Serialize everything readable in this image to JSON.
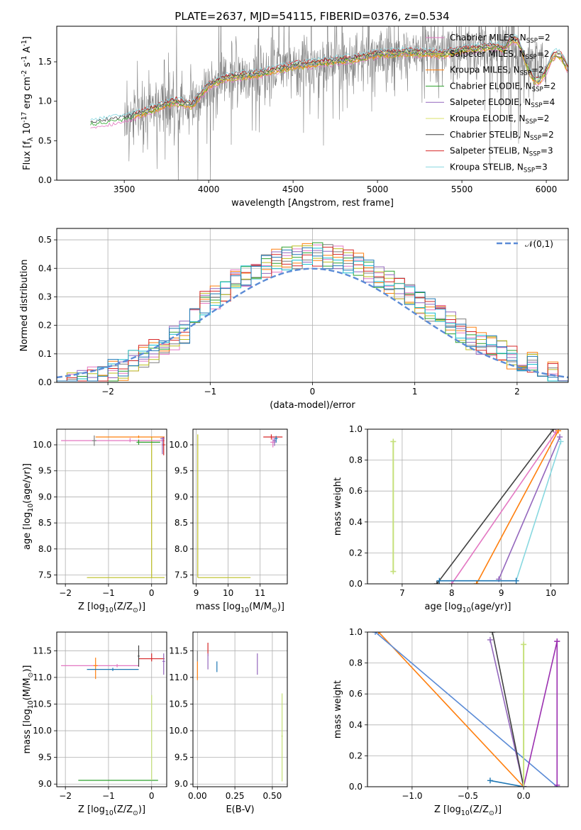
{
  "title": "PLATE=2637, MJD=54115, FIBERID=0376, z=0.534",
  "colors": [
    "#e377c2",
    "#7f7f7f",
    "#bcbd22",
    "#17becf",
    "#1f77b4",
    "#ff7f0e",
    "#2ca02c",
    "#d62728",
    "#9467bd"
  ],
  "model_names": [
    "Chabrier MILES",
    "Salpeter MILES",
    "Kroupa MILES",
    "Chabrier ELODIE",
    "Salpeter ELODIE",
    "Kroupa ELODIE",
    "Chabrier STELIB",
    "Salpeter STELIB",
    "Kroupa STELIB"
  ],
  "chart_data": [
    {
      "id": "spectrum",
      "type": "line",
      "xlabel": "wavelength [Angstrom, rest frame]",
      "ylabel": "Flux [f$_\\lambda 10^{-17}$ erg cm$^{-2}$ s$^{-1}$ A$^{-1}$]",
      "xlim": [
        3100,
        6130
      ],
      "ylim": [
        0,
        1.95
      ],
      "xticks": [
        3500,
        4000,
        4500,
        5000,
        5500,
        6000
      ],
      "yticks": [
        0.0,
        0.5,
        1.0,
        1.5
      ],
      "grid": false,
      "legend_position": "right",
      "data_color": "#808080",
      "data_range": [
        3500,
        6000
      ],
      "continuum_x": [
        3300,
        3500,
        3600,
        3800,
        3900,
        4000,
        4100,
        4300,
        4500,
        4700,
        4900,
        5000,
        5200,
        5400,
        5500,
        5700,
        5900,
        6000
      ],
      "continuum_y": [
        0.72,
        0.78,
        0.85,
        1.0,
        0.95,
        1.2,
        1.3,
        1.35,
        1.45,
        1.5,
        1.55,
        1.6,
        1.62,
        1.6,
        1.65,
        1.7,
        1.5,
        1.4
      ],
      "legend": [
        {
          "label": "Chabrier MILES",
          "nssp": "2",
          "color": "#e377c2"
        },
        {
          "label": "Salpeter MILES",
          "nssp": "2",
          "color": "#bcbd22"
        },
        {
          "label": "Kroupa MILES",
          "nssp": "2",
          "color": "#ff7f0e"
        },
        {
          "label": "Chabrier ELODIE",
          "nssp": "2",
          "color": "#2ca02c"
        },
        {
          "label": "Salpeter ELODIE",
          "nssp": "4",
          "color": "#9467bd"
        },
        {
          "label": "Kroupa ELODIE",
          "nssp": "2",
          "color": "#d8e06a"
        },
        {
          "label": "Chabrier STELIB",
          "nssp": "2",
          "color": "#404040"
        },
        {
          "label": "Salpeter STELIB",
          "nssp": "3",
          "color": "#d62728"
        },
        {
          "label": "Kroupa STELIB",
          "nssp": "3",
          "color": "#88d8e0"
        }
      ]
    },
    {
      "id": "residuals",
      "type": "histogram",
      "xlabel": "(data-model)/error",
      "ylabel": "Normed distribution",
      "xlim": [
        -2.5,
        2.5
      ],
      "ylim": [
        0,
        0.54
      ],
      "xticks": [
        -2,
        -1,
        0,
        1,
        2
      ],
      "yticks": [
        0.0,
        0.1,
        0.2,
        0.3,
        0.4,
        0.5
      ],
      "grid": true,
      "bin_width": 0.1,
      "normal_label": "$\\mathcal{N}(0,1)$",
      "normal_color": "#5b8bd6",
      "legend_position": "top-right"
    },
    {
      "id": "age-vs-Z",
      "type": "scatter",
      "xlabel": "Z [log$_{10}$(Z/Z$_\\odot$)]",
      "ylabel": "age  [log$_{10}$(age/yr)]",
      "xlim": [
        -2.2,
        0.35
      ],
      "ylim": [
        7.33,
        10.3
      ],
      "xticks": [
        -2,
        -1,
        0
      ],
      "yticks": [
        7.5,
        8.0,
        8.5,
        9.0,
        9.5,
        10.0
      ],
      "grid": true
    },
    {
      "id": "age-vs-mass",
      "type": "scatter",
      "xlabel": "mass [log$_{10}$(M/M$_\\odot$)]",
      "ylabel": "",
      "xlim": [
        8.9,
        11.85
      ],
      "ylim": [
        7.33,
        10.3
      ],
      "xticks": [
        9,
        10,
        11
      ],
      "yticks": [
        7.5,
        8.0,
        8.5,
        9.0,
        9.5,
        10.0
      ],
      "grid": true
    },
    {
      "id": "mass-weight-vs-age",
      "type": "line",
      "xlabel": "age  [log$_{10}$(age/yr)]",
      "ylabel": "mass weight",
      "xlim": [
        6.3,
        10.35
      ],
      "ylim": [
        0,
        1
      ],
      "xticks": [
        7,
        8,
        9,
        10
      ],
      "yticks": [
        0.0,
        0.2,
        0.4,
        0.6,
        0.8,
        1.0
      ],
      "grid": true
    },
    {
      "id": "mass-vs-Z",
      "type": "scatter",
      "xlabel": "Z [log$_{10}$(Z/Z$_\\odot$)]",
      "ylabel": "mass [log$_{10}$(M/M$_\\odot$)]",
      "xlim": [
        -2.2,
        0.35
      ],
      "ylim": [
        8.95,
        11.85
      ],
      "xticks": [
        -2,
        -1,
        0
      ],
      "yticks": [
        9.0,
        9.5,
        10.0,
        10.5,
        11.0,
        11.5
      ],
      "grid": true
    },
    {
      "id": "mass-vs-ebv",
      "type": "scatter",
      "xlabel": "E(B-V)",
      "ylabel": "",
      "xlim": [
        -0.03,
        0.6
      ],
      "ylim": [
        8.95,
        11.85
      ],
      "xticks": [
        0.0,
        0.25,
        0.5
      ],
      "yticks": [
        9.0,
        9.5,
        10.0,
        10.5,
        11.0,
        11.5
      ],
      "grid": true
    },
    {
      "id": "mass-weight-vs-Z",
      "type": "line",
      "xlabel": "Z [log$_{10}$(Z/Z$_\\odot$)]",
      "ylabel": "mass weight",
      "xlim": [
        -1.4,
        0.4
      ],
      "ylim": [
        0,
        1
      ],
      "xticks": [
        -1.0,
        -0.5,
        0.0
      ],
      "yticks": [
        0.0,
        0.2,
        0.4,
        0.6,
        0.8,
        1.0
      ],
      "grid": true
    }
  ]
}
